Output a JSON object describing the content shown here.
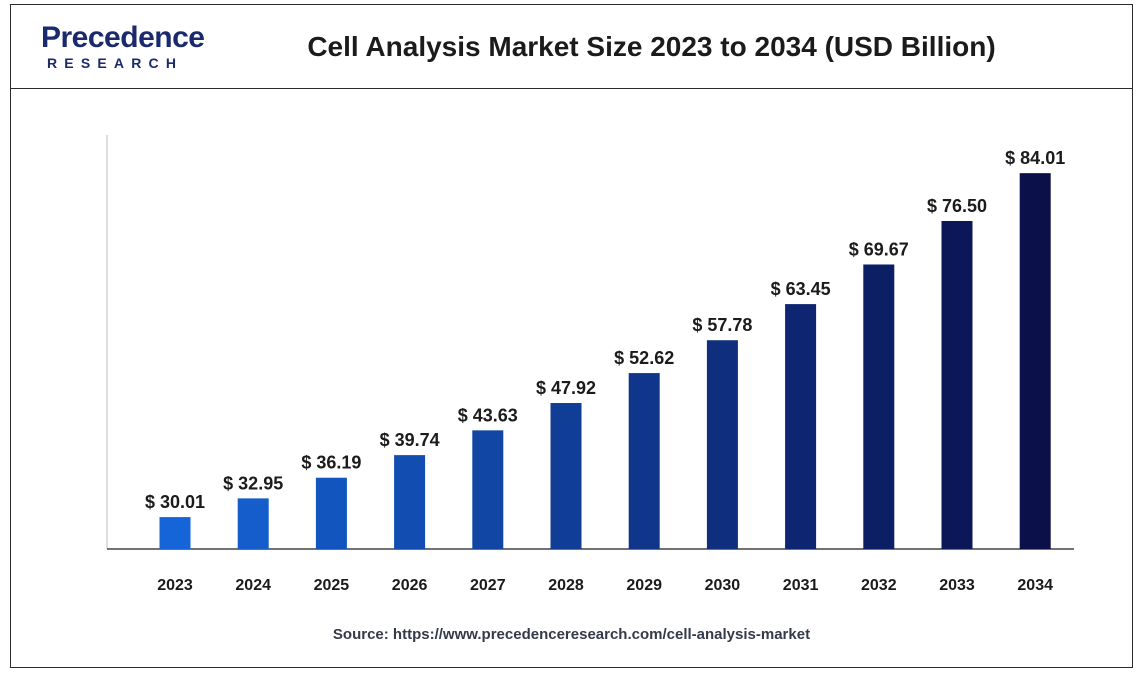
{
  "header": {
    "logo_word": "Precedence",
    "logo_sub": "RESEARCH",
    "title": "Cell Analysis Market Size 2023 to 2034 (USD Billion)"
  },
  "source": "Source: https://www.precedenceresearch.com/cell-analysis-market",
  "colors": {
    "brand": "#1a2a6c",
    "bar_start": "#1565d8",
    "bar_end": "#0b0f4a",
    "axis": "#444444"
  },
  "chart_data": {
    "type": "bar",
    "title": "Cell Analysis Market Size 2023 to 2034 (USD Billion)",
    "xlabel": "",
    "ylabel": "",
    "categories": [
      "2023",
      "2024",
      "2025",
      "2026",
      "2027",
      "2028",
      "2029",
      "2030",
      "2031",
      "2032",
      "2033",
      "2034"
    ],
    "values": [
      30.01,
      32.95,
      36.19,
      39.74,
      43.63,
      47.92,
      52.62,
      57.78,
      63.45,
      69.67,
      76.5,
      84.01
    ],
    "labels": [
      "$ 30.01",
      "$ 32.95",
      "$ 36.19",
      "$ 39.74",
      "$ 43.63",
      "$ 47.92",
      "$ 52.62",
      "$ 57.78",
      "$ 63.45",
      "$ 69.67",
      "$ 76.50",
      "$ 84.01"
    ],
    "ylim": [
      25,
      90
    ],
    "grid": false,
    "legend": "none"
  }
}
